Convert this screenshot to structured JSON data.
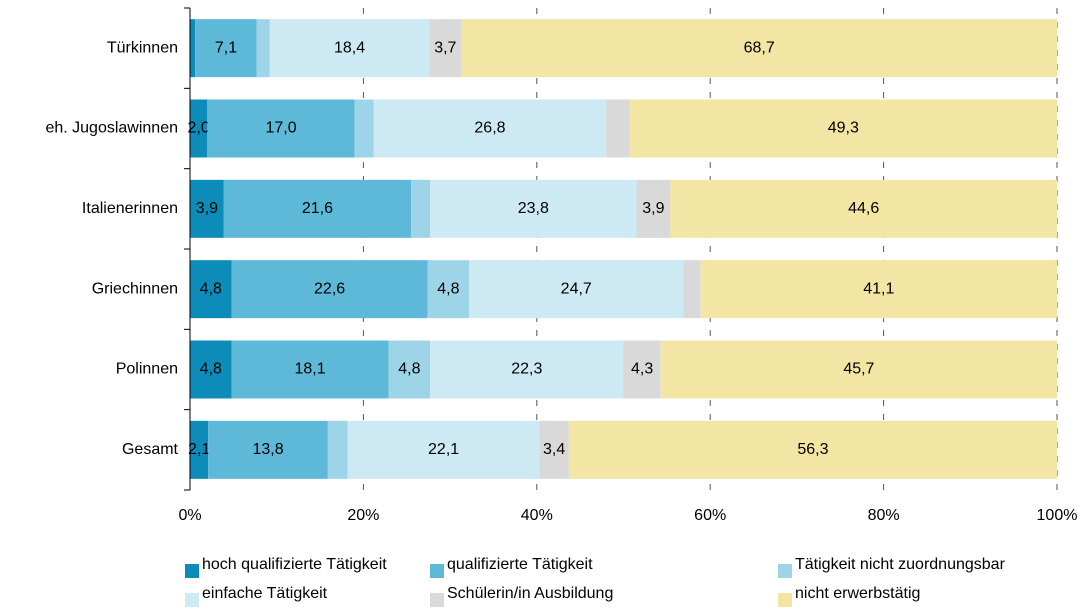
{
  "chart_data": {
    "type": "stacked-bar-horizontal",
    "categories": [
      "Türkinnen",
      "eh. Jugoslawinnen",
      "Italienerinnen",
      "Griechinnen",
      "Polinnen",
      "Gesamt"
    ],
    "series": [
      {
        "name": "hoch qualifizierte Tätigkeit",
        "color": "#0e8cb9",
        "values": [
          0.6,
          2.0,
          3.9,
          4.8,
          4.8,
          2.1
        ],
        "value_labels": [
          null,
          "2,0",
          "3,9",
          "4,8",
          "4,8",
          "2,1"
        ]
      },
      {
        "name": "qualifizierte Tätigkeit",
        "color": "#5db9d7",
        "values": [
          7.1,
          17.0,
          21.6,
          22.6,
          18.1,
          13.8
        ],
        "value_labels": [
          "7,1",
          "17,0",
          "21,6",
          "22,6",
          "18,1",
          "13,8"
        ]
      },
      {
        "name": "Tätigkeit nicht zuordnungsbar",
        "color": "#9ed4e7",
        "values": [
          1.5,
          2.2,
          2.2,
          4.8,
          4.8,
          2.3
        ],
        "value_labels": [
          null,
          null,
          null,
          "4,8",
          "4,8",
          null
        ]
      },
      {
        "name": "einfache Tätigkeit",
        "color": "#cde9f3",
        "values": [
          18.4,
          26.8,
          23.8,
          24.7,
          22.3,
          22.1
        ],
        "value_labels": [
          "18,4",
          "26,8",
          "23,8",
          "24,7",
          "22,3",
          "22,1"
        ]
      },
      {
        "name": "Schülerin/in Ausbildung",
        "color": "#d9d9d9",
        "values": [
          3.7,
          2.7,
          3.9,
          2.0,
          4.3,
          3.4
        ],
        "value_labels": [
          "3,7",
          null,
          "3,9",
          null,
          "4,3",
          "3,4"
        ]
      },
      {
        "name": "nicht erwerbstätig",
        "color": "#f3e6a4",
        "values": [
          68.7,
          49.3,
          44.6,
          41.1,
          45.7,
          56.3
        ],
        "value_labels": [
          "68,7",
          "49,3",
          "44,6",
          "41,1",
          "45,7",
          "56,3"
        ]
      }
    ],
    "xlim": [
      0,
      100
    ],
    "xticks": [
      {
        "value": 0,
        "label": "0%"
      },
      {
        "value": 20,
        "label": "20%"
      },
      {
        "value": 40,
        "label": "40%"
      },
      {
        "value": 60,
        "label": "60%"
      },
      {
        "value": 80,
        "label": "80%"
      },
      {
        "value": 100,
        "label": "100%"
      }
    ],
    "grid": true,
    "legend": "bottom"
  }
}
